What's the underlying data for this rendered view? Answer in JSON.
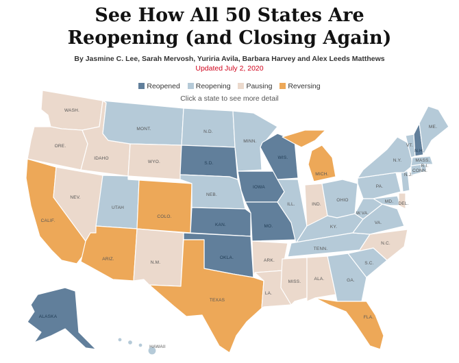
{
  "header": {
    "title_line1": "See How All 50 States Are",
    "title_line2": "Reopening (and Closing Again)",
    "byline": "By Jasmine C. Lee, Sarah Mervosh, Yuriria Avila, Barbara Harvey and Alex Leeds Matthews",
    "updated": "Updated July 2, 2020"
  },
  "legend": {
    "items": [
      {
        "label": "Reopened",
        "color": "#617f9b"
      },
      {
        "label": "Reopening",
        "color": "#b5cad8"
      },
      {
        "label": "Pausing",
        "color": "#ebd9cc"
      },
      {
        "label": "Reversing",
        "color": "#eda858"
      }
    ],
    "hint": "Click a state to see more detail"
  },
  "map": {
    "states": [
      {
        "id": "wa",
        "label": "WASH.",
        "status": "Pausing"
      },
      {
        "id": "or",
        "label": "ORE.",
        "status": "Pausing"
      },
      {
        "id": "ca",
        "label": "CALIF.",
        "status": "Reversing"
      },
      {
        "id": "id",
        "label": "IDAHO",
        "status": "Pausing"
      },
      {
        "id": "nv",
        "label": "NEV.",
        "status": "Pausing"
      },
      {
        "id": "mt",
        "label": "MONT.",
        "status": "Reopening"
      },
      {
        "id": "wy",
        "label": "WYO.",
        "status": "Pausing"
      },
      {
        "id": "ut",
        "label": "UTAH",
        "status": "Reopening"
      },
      {
        "id": "co",
        "label": "COLO.",
        "status": "Reversing"
      },
      {
        "id": "az",
        "label": "ARIZ.",
        "status": "Reversing"
      },
      {
        "id": "nm",
        "label": "N.M.",
        "status": "Pausing"
      },
      {
        "id": "nd",
        "label": "N.D.",
        "status": "Reopening"
      },
      {
        "id": "sd",
        "label": "S.D.",
        "status": "Reopened"
      },
      {
        "id": "ne",
        "label": "NEB.",
        "status": "Reopening"
      },
      {
        "id": "ks",
        "label": "KAN.",
        "status": "Reopened"
      },
      {
        "id": "ok",
        "label": "OKLA.",
        "status": "Reopened"
      },
      {
        "id": "tx",
        "label": "TEXAS",
        "status": "Reversing"
      },
      {
        "id": "mn",
        "label": "MINN.",
        "status": "Reopening"
      },
      {
        "id": "ia",
        "label": "IOWA",
        "status": "Reopened"
      },
      {
        "id": "mo",
        "label": "MO.",
        "status": "Reopened"
      },
      {
        "id": "ar",
        "label": "ARK.",
        "status": "Pausing"
      },
      {
        "id": "la",
        "label": "LA.",
        "status": "Pausing"
      },
      {
        "id": "wi",
        "label": "WIS.",
        "status": "Reopened"
      },
      {
        "id": "il",
        "label": "ILL.",
        "status": "Reopening"
      },
      {
        "id": "mi",
        "label": "MICH.",
        "status": "Reversing"
      },
      {
        "id": "in",
        "label": "IND.",
        "status": "Pausing"
      },
      {
        "id": "oh",
        "label": "OHIO",
        "status": "Reopening"
      },
      {
        "id": "ky",
        "label": "KY.",
        "status": "Reopening"
      },
      {
        "id": "tn",
        "label": "TENN.",
        "status": "Reopening"
      },
      {
        "id": "ms",
        "label": "MISS.",
        "status": "Pausing"
      },
      {
        "id": "al",
        "label": "ALA.",
        "status": "Pausing"
      },
      {
        "id": "ga",
        "label": "GA.",
        "status": "Reopening"
      },
      {
        "id": "fl",
        "label": "FLA.",
        "status": "Reversing"
      },
      {
        "id": "sc",
        "label": "S.C.",
        "status": "Reopening"
      },
      {
        "id": "nc",
        "label": "N.C.",
        "status": "Pausing"
      },
      {
        "id": "va",
        "label": "VA.",
        "status": "Reopening"
      },
      {
        "id": "wv",
        "label": "W.VA.",
        "status": "Reopening"
      },
      {
        "id": "md",
        "label": "MD.",
        "status": "Reopening"
      },
      {
        "id": "de",
        "label": "DEL.",
        "status": "Pausing"
      },
      {
        "id": "pa",
        "label": "PA.",
        "status": "Reopening"
      },
      {
        "id": "nj",
        "label": "N.J.",
        "status": "Reopening"
      },
      {
        "id": "ny",
        "label": "N.Y.",
        "status": "Reopening"
      },
      {
        "id": "ct",
        "label": "CONN.",
        "status": "Reopening"
      },
      {
        "id": "ri",
        "label": "R.I.",
        "status": "Reopening"
      },
      {
        "id": "ma",
        "label": "MASS.",
        "status": "Reopening"
      },
      {
        "id": "vt",
        "label": "VT.",
        "status": "Reopening"
      },
      {
        "id": "nh",
        "label": "N.H.",
        "status": "Reopened"
      },
      {
        "id": "me",
        "label": "ME.",
        "status": "Reopening"
      },
      {
        "id": "ak",
        "label": "ALASKA",
        "status": "Reopened"
      },
      {
        "id": "hi",
        "label": "HAWAII",
        "status": "Reopening"
      }
    ]
  }
}
